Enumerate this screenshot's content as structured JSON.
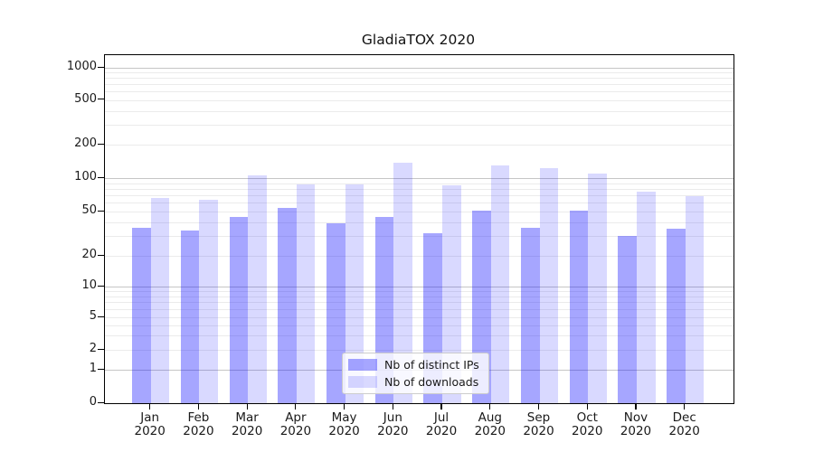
{
  "chart_data": {
    "type": "bar",
    "title": "GladiaTOX 2020",
    "categories": [
      "Jan 2020",
      "Feb 2020",
      "Mar 2020",
      "Apr 2020",
      "May 2020",
      "Jun 2020",
      "Jul 2020",
      "Aug 2020",
      "Sep 2020",
      "Oct 2020",
      "Nov 2020",
      "Dec 2020"
    ],
    "category_months": [
      "Jan",
      "Feb",
      "Mar",
      "Apr",
      "May",
      "Jun",
      "Jul",
      "Aug",
      "Sep",
      "Oct",
      "Nov",
      "Dec"
    ],
    "category_year": "2020",
    "series": [
      {
        "name": "Nb of distinct IPs",
        "color": "rgba(0,0,255,0.35)",
        "values": [
          36,
          34,
          45,
          54,
          39,
          45,
          32,
          51,
          36,
          51,
          30,
          35
        ]
      },
      {
        "name": "Nb of downloads",
        "color": "rgba(0,0,255,0.15)",
        "values": [
          66,
          64,
          105,
          87,
          87,
          138,
          86,
          130,
          123,
          110,
          75,
          69
        ]
      }
    ],
    "yscale": "symlog",
    "yticks": [
      0,
      1,
      2,
      5,
      10,
      20,
      50,
      100,
      200,
      500,
      1000
    ],
    "ytick_labels": [
      "0",
      "1",
      "2",
      "5",
      "10",
      "20",
      "50",
      "100",
      "200",
      "500",
      "1000"
    ],
    "ylim": [
      0,
      1400
    ],
    "xlabel": "",
    "ylabel": "",
    "grid": true,
    "legend_position": "lower center",
    "colors": {
      "bar_dark": "rgba(0,0,255,0.35)",
      "bar_light": "rgba(0,0,255,0.15)",
      "grid_major": "#c6c6c6",
      "grid_minor": "#ebebeb",
      "text": "#1a1a1a"
    }
  }
}
